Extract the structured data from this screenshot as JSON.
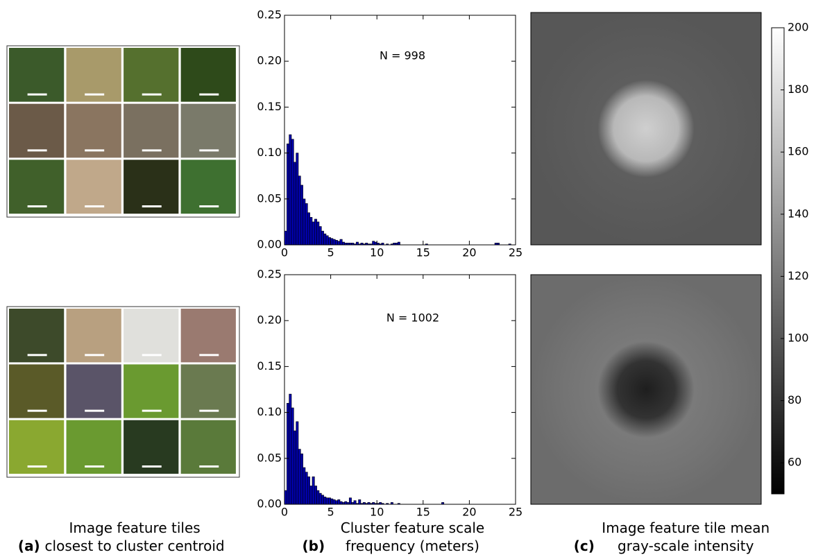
{
  "chart_data": [
    {
      "type": "histogram",
      "annotation": "N = 998",
      "color": "#0000aa",
      "bins": [
        0,
        0.25,
        0.5,
        0.75,
        1,
        1.25,
        1.5,
        1.75,
        2,
        2.25,
        2.5,
        2.75,
        3,
        3.25,
        3.5,
        3.75,
        4,
        4.25,
        4.5,
        4.75,
        5,
        5.25,
        5.5,
        5.75,
        6,
        6.25,
        6.5,
        6.75,
        7,
        7.25,
        7.5,
        7.75,
        8,
        8.25,
        8.5,
        8.75,
        9,
        9.25,
        9.5,
        9.75,
        10,
        10.25,
        10.5,
        10.75,
        11,
        11.25,
        11.5,
        11.75,
        12,
        12.25,
        12.5,
        12.75,
        13,
        13.25,
        13.5,
        13.75,
        14,
        14.25,
        14.5,
        14.75,
        15,
        15.25,
        15.5,
        15.75,
        16,
        16.25,
        16.5,
        16.75,
        17,
        17.25,
        17.5,
        17.75,
        18,
        18.25,
        18.5,
        18.75,
        19,
        19.25,
        19.5,
        19.75,
        20,
        20.25,
        20.5,
        20.75,
        21,
        21.25,
        21.5,
        21.75,
        22,
        22.25,
        22.5,
        22.75,
        23,
        23.25,
        23.5,
        23.75,
        24,
        24.25,
        24.5,
        24.75,
        25
      ],
      "values": [
        0.015,
        0.11,
        0.12,
        0.115,
        0.09,
        0.1,
        0.075,
        0.065,
        0.05,
        0.045,
        0.035,
        0.03,
        0.025,
        0.028,
        0.025,
        0.02,
        0.015,
        0.012,
        0.01,
        0.008,
        0.007,
        0.006,
        0.005,
        0.004,
        0.006,
        0.003,
        0.002,
        0.002,
        0.002,
        0.002,
        0.001,
        0.003,
        0.001,
        0.002,
        0.001,
        0.002,
        0.001,
        0.001,
        0.004,
        0.003,
        0.002,
        0.001,
        0.002,
        0,
        0.001,
        0,
        0.001,
        0.002,
        0.002,
        0.003,
        0,
        0,
        0,
        0,
        0,
        0,
        0,
        0,
        0,
        0,
        0,
        0.001,
        0,
        0,
        0,
        0,
        0,
        0,
        0,
        0,
        0,
        0,
        0,
        0,
        0,
        0,
        0,
        0,
        0,
        0,
        0,
        0,
        0,
        0,
        0,
        0,
        0,
        0,
        0,
        0,
        0,
        0.002,
        0.002,
        0,
        0,
        0,
        0,
        0.001,
        0,
        0
      ],
      "xlim": [
        0,
        25
      ],
      "ylim": [
        0,
        0.25
      ],
      "xticks": [
        0,
        5,
        10,
        15,
        20,
        25
      ],
      "yticks": [
        {
          "value": 0,
          "label": "0.00"
        },
        0.05,
        {
          "value": 0.1,
          "label": "0.10"
        },
        0.15,
        {
          "value": 0.2,
          "label": "0.20"
        },
        0.25
      ]
    },
    {
      "type": "histogram",
      "annotation": "N = 1002",
      "color": "#0000aa",
      "bins": [
        0,
        0.25,
        0.5,
        0.75,
        1,
        1.25,
        1.5,
        1.75,
        2,
        2.25,
        2.5,
        2.75,
        3,
        3.25,
        3.5,
        3.75,
        4,
        4.25,
        4.5,
        4.75,
        5,
        5.25,
        5.5,
        5.75,
        6,
        6.25,
        6.5,
        6.75,
        7,
        7.25,
        7.5,
        7.75,
        8,
        8.25,
        8.5,
        8.75,
        9,
        9.25,
        9.5,
        9.75,
        10,
        10.25,
        10.5,
        10.75,
        11,
        11.25,
        11.5,
        11.75,
        12,
        12.25,
        12.5,
        12.75,
        13,
        13.25,
        13.5,
        13.75,
        14,
        14.25,
        14.5,
        14.75,
        15,
        15.25,
        15.5,
        15.75,
        16,
        16.25,
        16.5,
        16.75,
        17,
        17.25,
        17.5,
        17.75,
        18,
        18.25,
        18.5,
        18.75,
        19,
        19.25,
        19.5,
        19.75,
        20,
        20.25,
        20.5,
        20.75,
        21,
        21.25,
        21.5,
        21.75,
        22,
        22.25,
        22.5,
        22.75,
        23,
        23.25,
        23.5,
        23.75,
        24,
        24.25,
        24.5,
        24.75,
        25
      ],
      "values": [
        0.015,
        0.11,
        0.12,
        0.105,
        0.08,
        0.09,
        0.06,
        0.055,
        0.04,
        0.035,
        0.03,
        0.02,
        0.03,
        0.02,
        0.015,
        0.012,
        0.01,
        0.008,
        0.007,
        0.007,
        0.006,
        0.005,
        0.004,
        0.005,
        0.003,
        0.002,
        0.003,
        0.002,
        0.007,
        0.002,
        0.004,
        0.001,
        0.005,
        0.001,
        0.002,
        0.001,
        0.002,
        0.001,
        0.002,
        0.001,
        0.001,
        0.002,
        0.001,
        0,
        0.001,
        0,
        0.002,
        0,
        0,
        0.001,
        0,
        0,
        0,
        0,
        0,
        0,
        0,
        0,
        0,
        0,
        0,
        0,
        0,
        0,
        0,
        0,
        0,
        0,
        0.002,
        0,
        0,
        0,
        0,
        0,
        0,
        0,
        0,
        0,
        0,
        0,
        0,
        0,
        0,
        0,
        0,
        0,
        0,
        0,
        0,
        0,
        0,
        0,
        0,
        0,
        0,
        0,
        0,
        0,
        0,
        0
      ],
      "xlim": [
        0,
        25
      ],
      "ylim": [
        0,
        0.25
      ],
      "xticks": [
        0,
        5,
        10,
        15,
        20,
        25
      ],
      "yticks": [
        {
          "value": 0,
          "label": "0.00"
        },
        0.05,
        {
          "value": 0.1,
          "label": "0.10"
        },
        0.15,
        {
          "value": 0.2,
          "label": "0.20"
        },
        0.25
      ]
    },
    {
      "type": "colorbar",
      "colormap": "gray",
      "ylim": [
        50,
        200
      ],
      "yticks": [
        60,
        80,
        100,
        120,
        140,
        160,
        180,
        200
      ]
    }
  ],
  "captions": [
    {
      "label": "(a)",
      "text": "Image feature tiles closest to cluster centroid"
    },
    {
      "label": "(b)",
      "text": "Cluster feature scale frequency (meters)"
    },
    {
      "label": "(c)",
      "text": "Image feature tile mean gray-scale intensity"
    }
  ]
}
